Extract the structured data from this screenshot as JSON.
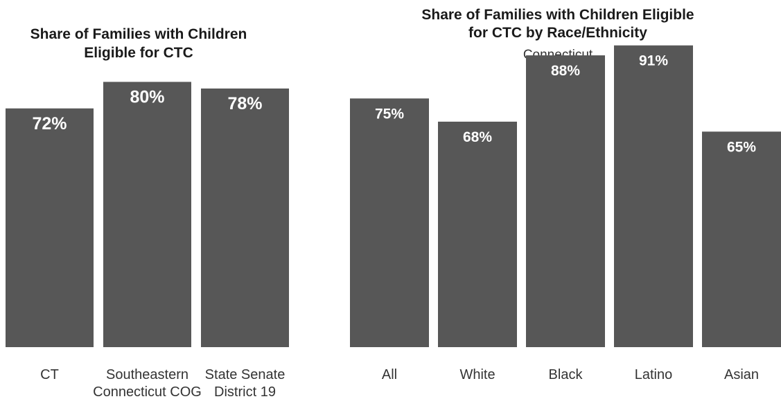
{
  "colors": {
    "bar": "#575757",
    "value_label": "#ffffff",
    "title": "#1a1a1a",
    "category_label": "#333333"
  },
  "chart_data": [
    {
      "type": "bar",
      "title": [
        "Share of Families with Children",
        "Eligible for CTC"
      ],
      "subtitle": "",
      "categories": [
        [
          "CT"
        ],
        [
          "Southeastern",
          "Connecticut COG"
        ],
        [
          "State Senate",
          "District 19"
        ]
      ],
      "values": [
        72,
        80,
        78
      ],
      "value_labels": [
        "72%",
        "80%",
        "78%"
      ],
      "xlabel": "",
      "ylabel": "",
      "ylim": [
        0,
        100
      ],
      "grid": false
    },
    {
      "type": "bar",
      "title": [
        "Share of Families with Children Eligible",
        "for CTC by Race/Ethnicity"
      ],
      "subtitle": "Connecticut",
      "categories": [
        [
          "All"
        ],
        [
          "White"
        ],
        [
          "Black"
        ],
        [
          "Latino"
        ],
        [
          "Asian"
        ]
      ],
      "values": [
        75,
        68,
        88,
        91,
        65
      ],
      "value_labels": [
        "75%",
        "68%",
        "88%",
        "91%",
        "65%"
      ],
      "xlabel": "",
      "ylabel": "",
      "ylim": [
        0,
        100
      ],
      "grid": false
    }
  ]
}
